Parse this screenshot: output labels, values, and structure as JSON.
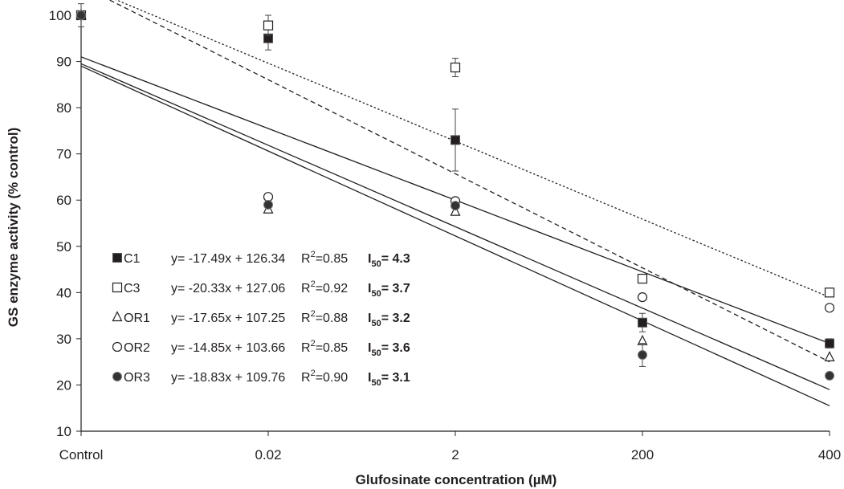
{
  "chart_data": {
    "type": "scatter",
    "title": "",
    "xlabel": "Glufosinate concentration (µM)",
    "ylabel": "GS enzyme activity (% control)",
    "categories": [
      "Control",
      "0.02",
      "2",
      "200",
      "400"
    ],
    "ylim": [
      10,
      100
    ],
    "yticks": [
      "10",
      "20",
      "30",
      "40",
      "50",
      "60",
      "70",
      "80",
      "90",
      "100"
    ],
    "grid": false,
    "legend_position": "bottom-left",
    "series": [
      {
        "name": "C1",
        "marker": "square-filled",
        "values": [
          100,
          95,
          73,
          33.5,
          29
        ],
        "errors": [
          null,
          2.5,
          6.7,
          2,
          1
        ],
        "equation": "y= -17.49x + 126.34",
        "r2_label": "R",
        "r2_value": "=0.85",
        "i50_label": "I",
        "i50_value": "= 4.3",
        "trend": {
          "line": "solid",
          "y_at_control": 91,
          "y_at_400": 29
        }
      },
      {
        "name": "C3",
        "marker": "square-open",
        "values": [
          100,
          97.8,
          88.7,
          43,
          40
        ],
        "errors": [
          null,
          2.2,
          2,
          null,
          null
        ],
        "equation": "y= -20.33x + 127.06",
        "r2_label": "R",
        "r2_value": "=0.92",
        "i50_label": "I",
        "i50_value": "= 3.7",
        "trend": {
          "line": "dotted",
          "y_at_control": 106.5,
          "y_at_400": 39
        }
      },
      {
        "name": "OR1",
        "marker": "triangle-open",
        "values": [
          100,
          58,
          57.5,
          29.5,
          26
        ],
        "errors": [
          2.5,
          null,
          null,
          null,
          null
        ],
        "equation": "y= -17.65x + 107.25",
        "r2_label": "R",
        "r2_value": "=0.88",
        "i50_label": "I",
        "i50_value": "= 3.2",
        "trend": {
          "line": "dashed",
          "y_at_control": 106.4,
          "y_at_400": 25
        }
      },
      {
        "name": "OR2",
        "marker": "circle-open",
        "values": [
          100,
          60.7,
          59.8,
          39,
          36.7
        ],
        "errors": [
          null,
          null,
          null,
          null,
          null
        ],
        "equation": "y= -14.85x + 103.66",
        "r2_label": "R",
        "r2_value": "=0.85",
        "i50_label": "I",
        "i50_value": "= 3.6",
        "trend": {
          "line": "solid",
          "y_at_control": 89.5,
          "y_at_400": 19
        }
      },
      {
        "name": "OR3",
        "marker": "circle-filled",
        "values": [
          100,
          59,
          58.8,
          26.5,
          22
        ],
        "errors": [
          null,
          null,
          null,
          2.5,
          null
        ],
        "equation": "y= -18.83x + 109.76",
        "r2_label": "R",
        "r2_value": "=0.90",
        "i50_label": "I",
        "i50_value": "= 3.1",
        "trend": {
          "line": "solid",
          "y_at_control": 89,
          "y_at_400": 15.5
        }
      }
    ]
  }
}
